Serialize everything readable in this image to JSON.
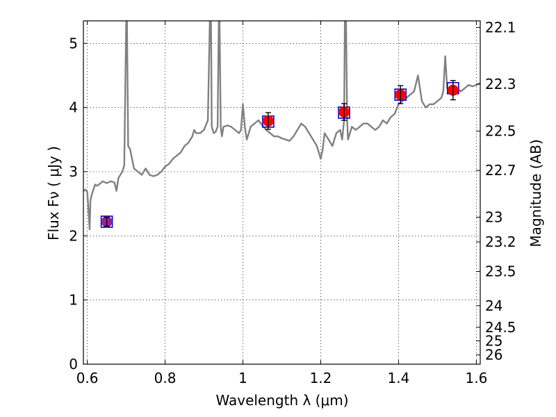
{
  "chart_data": {
    "type": "scatter",
    "title": "",
    "xlabel": "Wavelength  λ (μm)",
    "ylabel": "Flux  Fν  ( μJy )",
    "y2label": "Magnitude (AB)",
    "xlim": [
      0.59,
      1.61
    ],
    "ylim": [
      0,
      5.35
    ],
    "grid": true,
    "x_ticks": [
      {
        "value": 0.6,
        "label": "0.6"
      },
      {
        "value": 0.8,
        "label": "0.8"
      },
      {
        "value": 1.0,
        "label": "1"
      },
      {
        "value": 1.2,
        "label": "1.2"
      },
      {
        "value": 1.4,
        "label": "1.4"
      },
      {
        "value": 1.6,
        "label": "1.6"
      }
    ],
    "y_ticks": [
      {
        "value": 0,
        "label": "0"
      },
      {
        "value": 1,
        "label": "1"
      },
      {
        "value": 2,
        "label": "2"
      },
      {
        "value": 3,
        "label": "3"
      },
      {
        "value": 4,
        "label": "4"
      },
      {
        "value": 5,
        "label": "5"
      }
    ],
    "y2_ticks": [
      {
        "value": 22.1,
        "label": "22.1"
      },
      {
        "value": 22.3,
        "label": "22.3"
      },
      {
        "value": 22.5,
        "label": "22.5"
      },
      {
        "value": 22.7,
        "label": "22.7"
      },
      {
        "value": 23.0,
        "label": "23"
      },
      {
        "value": 23.2,
        "label": "23.2"
      },
      {
        "value": 23.5,
        "label": "23.5"
      },
      {
        "value": 24.0,
        "label": "24"
      },
      {
        "value": 24.5,
        "label": "24.5"
      },
      {
        "value": 25.0,
        "label": "25"
      },
      {
        "value": 26.0,
        "label": "26"
      }
    ],
    "series": [
      {
        "kind": "line",
        "color": "#808080",
        "x": [
          0.59,
          0.595,
          0.6,
          0.603,
          0.606,
          0.608,
          0.612,
          0.62,
          0.625,
          0.63,
          0.64,
          0.65,
          0.66,
          0.67,
          0.675,
          0.68,
          0.69,
          0.695,
          0.698,
          0.7,
          0.702,
          0.705,
          0.71,
          0.715,
          0.72,
          0.73,
          0.74,
          0.75,
          0.76,
          0.77,
          0.78,
          0.79,
          0.8,
          0.81,
          0.82,
          0.83,
          0.84,
          0.85,
          0.86,
          0.87,
          0.875,
          0.88,
          0.89,
          0.9,
          0.91,
          0.915,
          0.918,
          0.92,
          0.925,
          0.93,
          0.935,
          0.938,
          0.94,
          0.943,
          0.946,
          0.95,
          0.96,
          0.97,
          0.98,
          0.99,
          0.995,
          1.0,
          1.005,
          1.01,
          1.02,
          1.03,
          1.04,
          1.05,
          1.06,
          1.07,
          1.08,
          1.09,
          1.1,
          1.11,
          1.12,
          1.13,
          1.14,
          1.15,
          1.16,
          1.17,
          1.18,
          1.19,
          1.2,
          1.205,
          1.21,
          1.22,
          1.23,
          1.24,
          1.25,
          1.255,
          1.26,
          1.262,
          1.265,
          1.268,
          1.27,
          1.28,
          1.29,
          1.3,
          1.31,
          1.32,
          1.33,
          1.34,
          1.35,
          1.36,
          1.37,
          1.38,
          1.39,
          1.4,
          1.41,
          1.42,
          1.43,
          1.44,
          1.45,
          1.46,
          1.47,
          1.48,
          1.49,
          1.5,
          1.51,
          1.515,
          1.52,
          1.525,
          1.53,
          1.54,
          1.55,
          1.56,
          1.57,
          1.58,
          1.59,
          1.6,
          1.61
        ],
        "y": [
          2.7,
          2.72,
          2.68,
          2.4,
          2.1,
          2.55,
          2.65,
          2.8,
          2.78,
          2.8,
          2.85,
          2.82,
          2.85,
          2.83,
          2.7,
          2.9,
          3.0,
          3.1,
          4.5,
          5.35,
          5.35,
          3.4,
          3.35,
          3.2,
          3.05,
          3.0,
          2.95,
          3.05,
          2.95,
          2.93,
          2.95,
          3.0,
          3.08,
          3.12,
          3.2,
          3.25,
          3.3,
          3.4,
          3.45,
          3.55,
          3.65,
          3.6,
          3.6,
          3.65,
          3.8,
          5.35,
          5.35,
          3.7,
          3.6,
          3.62,
          3.7,
          5.35,
          5.35,
          3.7,
          3.55,
          3.7,
          3.72,
          3.7,
          3.65,
          3.6,
          3.65,
          4.05,
          3.7,
          3.5,
          3.7,
          3.75,
          3.8,
          3.72,
          3.65,
          3.6,
          3.55,
          3.55,
          3.52,
          3.5,
          3.48,
          3.55,
          3.65,
          3.75,
          3.7,
          3.6,
          3.5,
          3.4,
          3.2,
          3.35,
          3.6,
          3.5,
          3.4,
          3.6,
          3.65,
          3.5,
          3.8,
          5.35,
          5.35,
          3.8,
          3.5,
          3.7,
          3.65,
          3.7,
          3.75,
          3.75,
          3.7,
          3.65,
          3.7,
          3.8,
          3.75,
          3.85,
          3.9,
          4.05,
          4.1,
          4.15,
          4.2,
          4.25,
          4.5,
          4.1,
          4.0,
          4.05,
          4.05,
          4.1,
          4.15,
          4.25,
          4.8,
          4.3,
          4.25,
          4.3,
          4.3,
          4.25,
          4.3,
          4.35,
          4.33,
          4.35,
          4.38
        ]
      },
      {
        "kind": "scatter",
        "marker": "square",
        "color": "#0000cc",
        "x": [
          0.65,
          1.065,
          1.26,
          1.405,
          1.54
        ],
        "y": [
          2.22,
          3.78,
          3.92,
          4.2,
          4.3
        ]
      },
      {
        "kind": "scatter",
        "marker": "circle",
        "color": "#ff0000",
        "x": [
          0.65,
          1.065,
          1.26,
          1.405,
          1.54
        ],
        "y": [
          2.22,
          3.79,
          3.93,
          4.2,
          4.27
        ],
        "yerr": [
          0.07,
          0.13,
          0.13,
          0.14,
          0.15
        ],
        "special_color": {
          "index": 0,
          "color": "#9c1f9c"
        }
      }
    ]
  }
}
